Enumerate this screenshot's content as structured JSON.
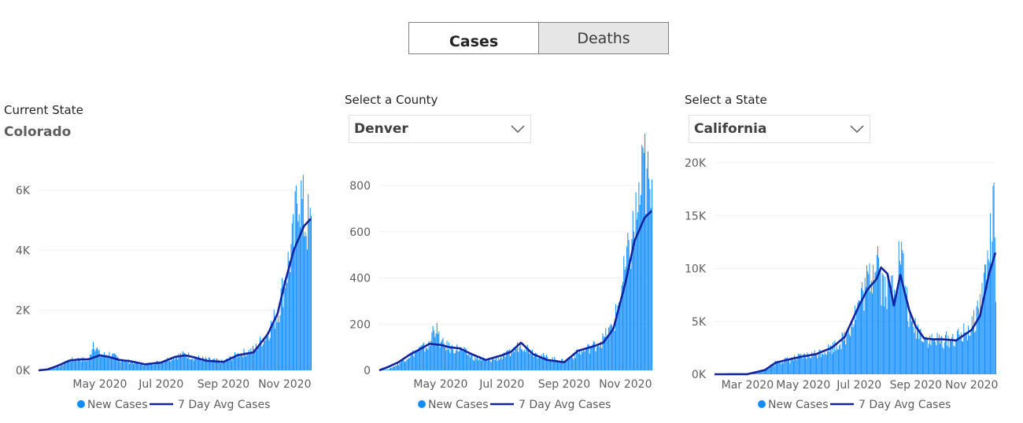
{
  "toggle": {
    "cases_label": "Cases",
    "deaths_label": "Deaths",
    "active": "Cases"
  },
  "panels": [
    {
      "label": "Current State",
      "selection": "Colorado",
      "is_dropdown": false,
      "dates": {
        "start": "2020-03-01",
        "end": "2020-11-27"
      },
      "y_ticks": [
        "0K",
        "2K",
        "4K",
        "6K"
      ],
      "x_ticks": [
        "May 2020",
        "Jul 2020",
        "Sep 2020",
        "Nov 2020"
      ]
    },
    {
      "label": "Select a County",
      "selection": "Denver",
      "is_dropdown": true,
      "dates": {
        "start": "2020-03-01",
        "end": "2020-11-27"
      },
      "y_ticks": [
        "0",
        "200",
        "400",
        "600",
        "800"
      ],
      "x_ticks": [
        "May 2020",
        "Jul 2020",
        "Sep 2020",
        "Nov 2020"
      ]
    },
    {
      "label": "Select a State",
      "selection": "California",
      "is_dropdown": true,
      "dates": {
        "start": "2020-01-25",
        "end": "2020-11-27"
      },
      "y_ticks": [
        "0K",
        "5K",
        "10K",
        "15K",
        "20K"
      ],
      "x_ticks": [
        "Mar 2020",
        "May 2020",
        "Jul 2020",
        "Sep 2020",
        "Nov 2020"
      ]
    }
  ],
  "legend": {
    "new_cases": "New Cases",
    "avg": "7 Day Avg Cases"
  },
  "colors": {
    "bars": "#118dff",
    "avg_line": "#12239e",
    "grid": "#f0f0f0",
    "axis_text": "#605e5c"
  },
  "icons": {
    "dropdown": "chevron-down-icon",
    "legend_dot": "circle-icon",
    "legend_line": "line-icon"
  },
  "chart_data": [
    {
      "type": "bar",
      "region": "Colorado",
      "x_range": [
        "2020-03-01",
        "2020-11-27"
      ],
      "ylim": [
        0,
        6800
      ],
      "series": [
        {
          "name": "New Cases",
          "type": "bar",
          "points": [
            [
              "2020-03-01",
              0
            ],
            [
              "2020-03-10",
              10
            ],
            [
              "2020-03-20",
              120
            ],
            [
              "2020-04-01",
              350
            ],
            [
              "2020-04-10",
              380
            ],
            [
              "2020-04-20",
              340
            ],
            [
              "2020-04-24",
              1000
            ],
            [
              "2020-05-01",
              500
            ],
            [
              "2020-05-10",
              560
            ],
            [
              "2020-05-20",
              380
            ],
            [
              "2020-06-01",
              280
            ],
            [
              "2020-06-15",
              200
            ],
            [
              "2020-07-01",
              300
            ],
            [
              "2020-07-15",
              480
            ],
            [
              "2020-07-25",
              560
            ],
            [
              "2020-08-01",
              450
            ],
            [
              "2020-08-15",
              370
            ],
            [
              "2020-09-01",
              300
            ],
            [
              "2020-09-15",
              550
            ],
            [
              "2020-10-01",
              700
            ],
            [
              "2020-10-15",
              1300
            ],
            [
              "2020-10-25",
              2000
            ],
            [
              "2020-11-01",
              3200
            ],
            [
              "2020-11-10",
              4500
            ],
            [
              "2020-11-14",
              6500
            ],
            [
              "2020-11-20",
              5200
            ],
            [
              "2020-11-27",
              4800
            ]
          ]
        },
        {
          "name": "7 Day Avg Cases",
          "type": "line",
          "points": [
            [
              "2020-03-01",
              0
            ],
            [
              "2020-03-10",
              30
            ],
            [
              "2020-03-20",
              150
            ],
            [
              "2020-04-01",
              330
            ],
            [
              "2020-04-10",
              360
            ],
            [
              "2020-04-20",
              370
            ],
            [
              "2020-05-01",
              500
            ],
            [
              "2020-05-10",
              450
            ],
            [
              "2020-05-20",
              350
            ],
            [
              "2020-06-01",
              300
            ],
            [
              "2020-06-15",
              200
            ],
            [
              "2020-07-01",
              260
            ],
            [
              "2020-07-15",
              450
            ],
            [
              "2020-07-25",
              500
            ],
            [
              "2020-08-01",
              450
            ],
            [
              "2020-08-15",
              320
            ],
            [
              "2020-09-01",
              280
            ],
            [
              "2020-09-15",
              500
            ],
            [
              "2020-10-01",
              600
            ],
            [
              "2020-10-15",
              1200
            ],
            [
              "2020-10-25",
              1900
            ],
            [
              "2020-11-01",
              2900
            ],
            [
              "2020-11-10",
              4000
            ],
            [
              "2020-11-20",
              4800
            ],
            [
              "2020-11-27",
              5050
            ]
          ]
        }
      ]
    },
    {
      "type": "bar",
      "region": "Denver",
      "x_range": [
        "2020-03-01",
        "2020-11-27"
      ],
      "ylim": [
        0,
        870
      ],
      "series": [
        {
          "name": "New Cases",
          "type": "bar",
          "points": [
            [
              "2020-03-01",
              0
            ],
            [
              "2020-03-10",
              5
            ],
            [
              "2020-03-20",
              30
            ],
            [
              "2020-04-01",
              70
            ],
            [
              "2020-04-10",
              95
            ],
            [
              "2020-04-20",
              110
            ],
            [
              "2020-04-24",
              210
            ],
            [
              "2020-05-01",
              120
            ],
            [
              "2020-05-10",
              100
            ],
            [
              "2020-05-20",
              95
            ],
            [
              "2020-06-01",
              60
            ],
            [
              "2020-06-15",
              40
            ],
            [
              "2020-07-01",
              60
            ],
            [
              "2020-07-10",
              80
            ],
            [
              "2020-07-20",
              120
            ],
            [
              "2020-08-01",
              80
            ],
            [
              "2020-08-15",
              55
            ],
            [
              "2020-09-01",
              40
            ],
            [
              "2020-09-15",
              80
            ],
            [
              "2020-10-01",
              110
            ],
            [
              "2020-10-10",
              140
            ],
            [
              "2020-10-20",
              200
            ],
            [
              "2020-11-01",
              450
            ],
            [
              "2020-11-10",
              650
            ],
            [
              "2020-11-20",
              900
            ],
            [
              "2020-11-27",
              700
            ]
          ]
        },
        {
          "name": "7 Day Avg Cases",
          "type": "line",
          "points": [
            [
              "2020-03-01",
              0
            ],
            [
              "2020-03-10",
              15
            ],
            [
              "2020-03-20",
              35
            ],
            [
              "2020-04-01",
              70
            ],
            [
              "2020-04-10",
              90
            ],
            [
              "2020-04-20",
              115
            ],
            [
              "2020-05-01",
              110
            ],
            [
              "2020-05-10",
              100
            ],
            [
              "2020-05-20",
              95
            ],
            [
              "2020-06-01",
              70
            ],
            [
              "2020-06-15",
              45
            ],
            [
              "2020-07-01",
              65
            ],
            [
              "2020-07-10",
              80
            ],
            [
              "2020-07-20",
              120
            ],
            [
              "2020-08-01",
              70
            ],
            [
              "2020-08-15",
              45
            ],
            [
              "2020-09-01",
              35
            ],
            [
              "2020-09-15",
              85
            ],
            [
              "2020-10-01",
              105
            ],
            [
              "2020-10-10",
              120
            ],
            [
              "2020-10-20",
              180
            ],
            [
              "2020-11-01",
              380
            ],
            [
              "2020-11-10",
              560
            ],
            [
              "2020-11-20",
              660
            ],
            [
              "2020-11-27",
              690
            ]
          ]
        }
      ]
    },
    {
      "type": "bar",
      "region": "California",
      "x_range": [
        "2020-01-25",
        "2020-11-27"
      ],
      "ylim": [
        0,
        20000
      ],
      "series": [
        {
          "name": "New Cases",
          "type": "bar",
          "points": [
            [
              "2020-01-25",
              0
            ],
            [
              "2020-03-01",
              10
            ],
            [
              "2020-03-20",
              400
            ],
            [
              "2020-04-01",
              1200
            ],
            [
              "2020-04-15",
              1400
            ],
            [
              "2020-05-01",
              1700
            ],
            [
              "2020-05-15",
              2000
            ],
            [
              "2020-06-01",
              2600
            ],
            [
              "2020-06-15",
              3500
            ],
            [
              "2020-07-01",
              7000
            ],
            [
              "2020-07-15",
              10000
            ],
            [
              "2020-07-20",
              12800
            ],
            [
              "2020-07-25",
              9000
            ],
            [
              "2020-08-01",
              8000
            ],
            [
              "2020-08-10",
              9500
            ],
            [
              "2020-08-15",
              12000
            ],
            [
              "2020-08-25",
              5000
            ],
            [
              "2020-09-01",
              4500
            ],
            [
              "2020-09-15",
              3300
            ],
            [
              "2020-10-01",
              3300
            ],
            [
              "2020-10-15",
              3500
            ],
            [
              "2020-11-01",
              4500
            ],
            [
              "2020-11-10",
              7000
            ],
            [
              "2020-11-20",
              12000
            ],
            [
              "2020-11-25",
              15400
            ],
            [
              "2020-11-27",
              8500
            ]
          ]
        },
        {
          "name": "7 Day Avg Cases",
          "type": "line",
          "points": [
            [
              "2020-01-25",
              0
            ],
            [
              "2020-03-01",
              10
            ],
            [
              "2020-03-20",
              400
            ],
            [
              "2020-04-01",
              1100
            ],
            [
              "2020-04-15",
              1400
            ],
            [
              "2020-05-01",
              1700
            ],
            [
              "2020-05-15",
              1900
            ],
            [
              "2020-06-01",
              2500
            ],
            [
              "2020-06-15",
              3500
            ],
            [
              "2020-07-01",
              6500
            ],
            [
              "2020-07-10",
              8000
            ],
            [
              "2020-07-20",
              9000
            ],
            [
              "2020-07-25",
              10100
            ],
            [
              "2020-08-01",
              9500
            ],
            [
              "2020-08-08",
              6500
            ],
            [
              "2020-08-15",
              9400
            ],
            [
              "2020-08-25",
              6000
            ],
            [
              "2020-09-01",
              4500
            ],
            [
              "2020-09-10",
              3400
            ],
            [
              "2020-09-20",
              3300
            ],
            [
              "2020-10-01",
              3300
            ],
            [
              "2020-10-15",
              3200
            ],
            [
              "2020-11-01",
              4200
            ],
            [
              "2020-11-10",
              5500
            ],
            [
              "2020-11-20",
              9500
            ],
            [
              "2020-11-27",
              11500
            ]
          ]
        }
      ]
    }
  ]
}
